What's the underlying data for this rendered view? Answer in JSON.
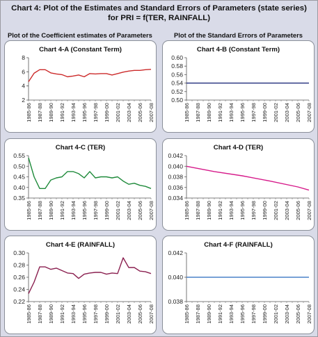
{
  "title": "Chart 4: Plot of the Estimates and Standard Errors of Parameters (state series) for PRI = f(TER, RAINFALL)",
  "left_heading": "Plot of the Coefficient estimates of Parameters",
  "right_heading": "Plot of the Standard Errors of Parameters",
  "x_tick_labels": [
    "1985-86",
    "1987-88",
    "1989-90",
    "1991-92",
    "1993-94",
    "1995-96",
    "1997-98",
    "1999-00",
    "2001-02",
    "2003-04",
    "2005-06",
    "2007-08"
  ],
  "chart_data": [
    {
      "id": "4-A",
      "type": "line",
      "title": "Chart 4-A (Constant Term)",
      "x": [
        "1985-86",
        "1986-87",
        "1987-88",
        "1988-89",
        "1989-90",
        "1990-91",
        "1991-92",
        "1992-93",
        "1993-94",
        "1994-95",
        "1995-96",
        "1996-97",
        "1997-98",
        "1998-99",
        "1999-00",
        "2000-01",
        "2001-02",
        "2002-03",
        "2003-04",
        "2004-05",
        "2005-06",
        "2006-07",
        "2007-08"
      ],
      "values": [
        4.6,
        5.8,
        6.3,
        6.3,
        5.85,
        5.7,
        5.6,
        5.3,
        5.4,
        5.55,
        5.3,
        5.75,
        5.7,
        5.75,
        5.75,
        5.55,
        5.75,
        5.95,
        6.1,
        6.2,
        6.2,
        6.3,
        6.35
      ],
      "ylim": [
        2,
        8
      ],
      "yticks": [
        2,
        4,
        6,
        8
      ],
      "ytick_labels": [
        "2",
        "4",
        "6",
        "8"
      ],
      "color": "#cc2a2a"
    },
    {
      "id": "4-B",
      "type": "line",
      "title": "Chart 4-B (Constant Term)",
      "x": [
        "1985-86",
        "2007-08"
      ],
      "values": [
        0.54,
        0.54
      ],
      "ylim": [
        0.5,
        0.6
      ],
      "yticks": [
        0.5,
        0.52,
        0.54,
        0.56,
        0.58,
        0.6
      ],
      "ytick_labels": [
        "0.50",
        "0.52",
        "0.54",
        "0.56",
        "0.58",
        "0.60"
      ],
      "color": "#1f2a7a"
    },
    {
      "id": "4-C",
      "type": "line",
      "title": "Chart 4-C (TER)",
      "x": [
        "1985-86",
        "1986-87",
        "1987-88",
        "1988-89",
        "1989-90",
        "1990-91",
        "1991-92",
        "1992-93",
        "1993-94",
        "1994-95",
        "1995-96",
        "1996-97",
        "1997-98",
        "1998-99",
        "1999-00",
        "2000-01",
        "2001-02",
        "2002-03",
        "2003-04",
        "2004-05",
        "2005-06",
        "2006-07",
        "2007-08"
      ],
      "values": [
        0.54,
        0.45,
        0.395,
        0.395,
        0.435,
        0.445,
        0.45,
        0.475,
        0.475,
        0.465,
        0.445,
        0.475,
        0.445,
        0.45,
        0.45,
        0.445,
        0.45,
        0.43,
        0.415,
        0.42,
        0.41,
        0.405,
        0.395
      ],
      "ylim": [
        0.35,
        0.55
      ],
      "yticks": [
        0.35,
        0.4,
        0.45,
        0.5,
        0.55
      ],
      "ytick_labels": [
        "0.35",
        "0.40",
        "0.45",
        "0.50",
        "0.55"
      ],
      "color": "#1e8a3a"
    },
    {
      "id": "4-D",
      "type": "line",
      "title": "Chart 4-D (TER)",
      "x": [
        "1985-86",
        "1990-91",
        "1995-96",
        "2000-01",
        "2005-06",
        "2007-08"
      ],
      "values": [
        0.04,
        0.039,
        0.0382,
        0.0372,
        0.0361,
        0.0355
      ],
      "ylim": [
        0.034,
        0.042
      ],
      "yticks": [
        0.034,
        0.036,
        0.038,
        0.04,
        0.042
      ],
      "ytick_labels": [
        "0.034",
        "0.036",
        "0.038",
        "0.040",
        "0.042"
      ],
      "color": "#d61a8a"
    },
    {
      "id": "4-E",
      "type": "line",
      "title": "Chart 4-E (RAINFALL)",
      "x": [
        "1985-86",
        "1986-87",
        "1987-88",
        "1988-89",
        "1989-90",
        "1990-91",
        "1991-92",
        "1992-93",
        "1993-94",
        "1994-95",
        "1995-96",
        "1996-97",
        "1997-98",
        "1998-99",
        "1999-00",
        "2000-01",
        "2001-02",
        "2002-03",
        "2003-04",
        "2004-05",
        "2005-06",
        "2006-07",
        "2007-08"
      ],
      "values": [
        0.233,
        0.252,
        0.277,
        0.277,
        0.273,
        0.275,
        0.271,
        0.267,
        0.266,
        0.258,
        0.265,
        0.267,
        0.268,
        0.268,
        0.265,
        0.267,
        0.266,
        0.292,
        0.276,
        0.276,
        0.27,
        0.269,
        0.266
      ],
      "ylim": [
        0.22,
        0.3
      ],
      "yticks": [
        0.22,
        0.24,
        0.26,
        0.28,
        0.3
      ],
      "ytick_labels": [
        "0.22",
        "0.24",
        "0.26",
        "0.28",
        "0.30"
      ],
      "color": "#8a1f4f"
    },
    {
      "id": "4-F",
      "type": "line",
      "title": "Chart 4-F (RAINFALL)",
      "x": [
        "1985-86",
        "2007-08"
      ],
      "values": [
        0.04,
        0.04
      ],
      "ylim": [
        0.038,
        0.042
      ],
      "yticks": [
        0.038,
        0.04,
        0.042
      ],
      "ytick_labels": [
        "0.038",
        "0.040",
        "0.042"
      ],
      "color": "#4a82c8"
    }
  ]
}
